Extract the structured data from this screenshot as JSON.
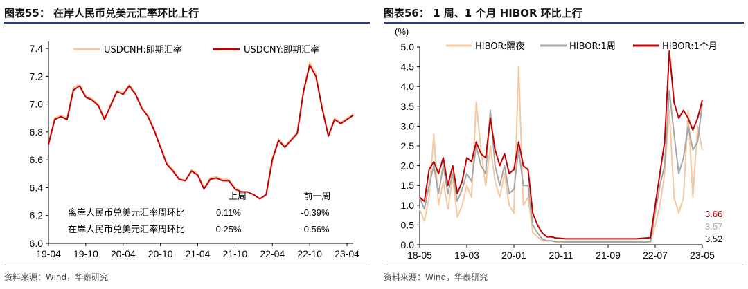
{
  "charts": [
    {
      "title": "图表55：  在岸人民币兑美元汇率环比上行",
      "source": "资料来源：Wind，华泰研究",
      "chart_data": {
        "type": "line",
        "title": "在岸人民币兑美元汇率环比上行",
        "x_ticks": [
          "19-04",
          "19-10",
          "20-04",
          "20-10",
          "21-04",
          "21-10",
          "22-04",
          "22-10",
          "23-04"
        ],
        "x_range": [
          "2019-04",
          "2023-05"
        ],
        "y_ticks": [
          "6.0",
          "6.2",
          "6.4",
          "6.6",
          "6.8",
          "7.0",
          "7.2",
          "7.4"
        ],
        "ylim": [
          6.0,
          7.45
        ],
        "legend": [
          "USDCNH:即期汇率",
          "USDCNY:即期汇率"
        ],
        "legend_position": "top",
        "x_dates": [
          "2019-04",
          "2019-05",
          "2019-06",
          "2019-07",
          "2019-08",
          "2019-09",
          "2019-10",
          "2019-11",
          "2019-12",
          "2020-01",
          "2020-02",
          "2020-03",
          "2020-04",
          "2020-05",
          "2020-06",
          "2020-07",
          "2020-08",
          "2020-09",
          "2020-10",
          "2020-11",
          "2020-12",
          "2021-01",
          "2021-02",
          "2021-03",
          "2021-04",
          "2021-05",
          "2021-06",
          "2021-07",
          "2021-08",
          "2021-09",
          "2021-10",
          "2021-11",
          "2021-12",
          "2022-01",
          "2022-02",
          "2022-03",
          "2022-04",
          "2022-05",
          "2022-06",
          "2022-07",
          "2022-08",
          "2022-09",
          "2022-10",
          "2022-11",
          "2022-12",
          "2023-01",
          "2023-02",
          "2023-03",
          "2023-04",
          "2023-05"
        ],
        "series": [
          {
            "name": "USDCNH:即期汇率",
            "color": "#f6c8a0",
            "values": [
              6.72,
              6.9,
              6.92,
              6.9,
              7.12,
              7.14,
              7.06,
              7.04,
              7.0,
              6.9,
              7.0,
              7.1,
              7.08,
              7.14,
              7.08,
              6.98,
              6.92,
              6.82,
              6.7,
              6.58,
              6.53,
              6.47,
              6.45,
              6.53,
              6.5,
              6.4,
              6.47,
              6.48,
              6.46,
              6.46,
              6.4,
              6.37,
              6.37,
              6.35,
              6.32,
              6.36,
              6.62,
              6.75,
              6.7,
              6.75,
              6.8,
              7.1,
              7.3,
              7.22,
              6.98,
              6.78,
              6.9,
              6.87,
              6.9,
              6.93
            ]
          },
          {
            "name": "USDCNY:即期汇率",
            "color": "#c00000",
            "values": [
              6.71,
              6.89,
              6.91,
              6.89,
              7.1,
              7.13,
              7.05,
              7.03,
              6.99,
              6.89,
              6.99,
              7.09,
              7.07,
              7.13,
              7.07,
              6.97,
              6.91,
              6.81,
              6.69,
              6.57,
              6.52,
              6.46,
              6.45,
              6.52,
              6.49,
              6.39,
              6.46,
              6.47,
              6.45,
              6.45,
              6.39,
              6.37,
              6.37,
              6.35,
              6.32,
              6.35,
              6.6,
              6.74,
              6.69,
              6.74,
              6.79,
              7.09,
              7.28,
              7.2,
              6.97,
              6.77,
              6.89,
              6.86,
              6.89,
              6.92
            ]
          }
        ],
        "table": {
          "col_headers": [
            "上周",
            "前一周"
          ],
          "rows": [
            {
              "label": "离岸人民币兑美元汇率周环比",
              "current": "0.11%",
              "previous": "-0.39%"
            },
            {
              "label": "在岸人民币兑美元汇率周环比",
              "current": "0.25%",
              "previous": "-0.56%"
            }
          ]
        }
      }
    },
    {
      "title": "图表56：  1 周、1 个月  HIBOR 环比上行",
      "source": "资料来源：Wind，华泰研究",
      "chart_data": {
        "type": "line",
        "title": "1 周、1 个月 HIBOR 环比上行",
        "ylabel": "(%)",
        "x_ticks": [
          "18-05",
          "19-03",
          "20-01",
          "20-11",
          "21-09",
          "22-07",
          "23-05"
        ],
        "x_range": [
          "2018-05",
          "2023-05"
        ],
        "y_ticks": [
          "0.0",
          "0.5",
          "1.0",
          "1.5",
          "2.0",
          "2.5",
          "3.0",
          "3.5",
          "4.0",
          "4.5",
          "5.0"
        ],
        "ylim": [
          0,
          5.0
        ],
        "legend": [
          "HIBOR:隔夜",
          "HIBOR:1周",
          "HIBOR:1个月"
        ],
        "legend_position": "top",
        "x_dates": [
          "2018-05",
          "2018-06",
          "2018-07",
          "2018-08",
          "2018-09",
          "2018-10",
          "2018-11",
          "2018-12",
          "2019-01",
          "2019-02",
          "2019-03",
          "2019-04",
          "2019-05",
          "2019-06",
          "2019-07",
          "2019-08",
          "2019-09",
          "2019-10",
          "2019-11",
          "2019-12",
          "2020-01",
          "2020-02",
          "2020-03",
          "2020-04",
          "2020-05",
          "2020-06",
          "2020-07",
          "2020-08",
          "2020-09",
          "2020-10",
          "2020-11",
          "2020-12",
          "2021-01",
          "2021-02",
          "2021-03",
          "2021-04",
          "2021-05",
          "2021-06",
          "2021-07",
          "2021-08",
          "2021-09",
          "2021-10",
          "2021-11",
          "2021-12",
          "2022-01",
          "2022-02",
          "2022-03",
          "2022-04",
          "2022-05",
          "2022-06",
          "2022-07",
          "2022-08",
          "2022-09",
          "2022-10",
          "2022-11",
          "2022-12",
          "2023-01",
          "2023-02",
          "2023-03",
          "2023-04",
          "2023-05"
        ],
        "series": [
          {
            "name": "HIBOR:隔夜",
            "color": "#f6c8a0",
            "values": [
              0.9,
              0.6,
              1.2,
              2.8,
              1.0,
              1.6,
              0.9,
              1.7,
              0.7,
              1.0,
              1.5,
              1.2,
              3.6,
              2.4,
              1.5,
              2.5,
              1.6,
              1.2,
              1.8,
              1.0,
              0.8,
              4.5,
              1.0,
              1.2,
              0.3,
              0.2,
              0.1,
              0.1,
              0.1,
              0.05,
              0.05,
              0.05,
              0.05,
              0.05,
              0.05,
              0.05,
              0.05,
              0.05,
              0.05,
              0.05,
              0.05,
              0.05,
              0.05,
              0.05,
              0.05,
              0.05,
              0.05,
              0.05,
              0.05,
              0.05,
              0.5,
              1.0,
              1.8,
              3.4,
              1.2,
              0.8,
              1.2,
              3.4,
              1.2,
              3.0,
              2.4
            ]
          },
          {
            "name": "HIBOR:1周",
            "color": "#a6a6a6",
            "values": [
              1.2,
              0.9,
              1.5,
              2.0,
              1.3,
              2.0,
              1.3,
              1.8,
              1.1,
              1.4,
              1.8,
              1.6,
              2.5,
              2.0,
              1.8,
              3.4,
              2.0,
              1.5,
              2.0,
              1.3,
              1.4,
              2.4,
              1.5,
              1.5,
              0.5,
              0.3,
              0.15,
              0.1,
              0.1,
              0.08,
              0.08,
              0.07,
              0.07,
              0.07,
              0.07,
              0.07,
              0.07,
              0.07,
              0.07,
              0.07,
              0.07,
              0.07,
              0.07,
              0.07,
              0.07,
              0.07,
              0.07,
              0.07,
              0.07,
              0.08,
              0.8,
              1.5,
              2.0,
              3.9,
              2.8,
              1.8,
              2.2,
              3.0,
              2.4,
              2.6,
              3.57
            ]
          },
          {
            "name": "HIBOR:1个月",
            "color": "#c00000",
            "values": [
              1.2,
              1.1,
              1.9,
              2.1,
              1.8,
              2.2,
              1.5,
              2.0,
              1.3,
              1.6,
              2.2,
              2.1,
              2.6,
              2.3,
              2.2,
              3.2,
              2.4,
              2.0,
              2.3,
              1.8,
              1.9,
              2.6,
              2.0,
              1.9,
              0.8,
              0.5,
              0.3,
              0.2,
              0.2,
              0.17,
              0.16,
              0.15,
              0.15,
              0.15,
              0.15,
              0.15,
              0.15,
              0.15,
              0.15,
              0.15,
              0.15,
              0.15,
              0.15,
              0.15,
              0.15,
              0.15,
              0.15,
              0.16,
              0.17,
              0.18,
              1.0,
              1.8,
              2.6,
              4.9,
              3.6,
              3.2,
              3.4,
              3.2,
              2.9,
              3.2,
              3.66
            ]
          }
        ],
        "end_labels": [
          {
            "text": "3.66",
            "color": "#c00000"
          },
          {
            "text": "3.57",
            "color": "#a6a6a6"
          },
          {
            "text": "3.52",
            "color": "#000000"
          }
        ]
      }
    }
  ]
}
